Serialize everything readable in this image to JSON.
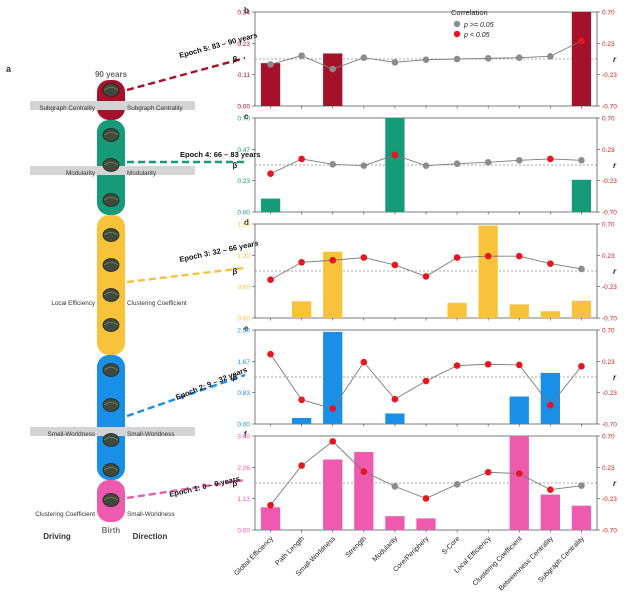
{
  "panel_a": {
    "letter": "a",
    "top_label": "90 years",
    "bottom_label": "Birth",
    "driving_label": "Driving",
    "direction_label": "Direction",
    "epochs": [
      {
        "label": "Epoch 5: 83 – 90 years",
        "color": "#a5102a",
        "left": "Subgraph Centrality",
        "right": "Subgraph Centrality"
      },
      {
        "label": "Epoch 4: 66 – 83 years",
        "color": "#169a77",
        "left": "Modularity",
        "right": "Modularity"
      },
      {
        "label": "Epoch 3: 32 – 66 years",
        "color": "#f8c33b",
        "left": "Local Efficiency",
        "right": "Clustering Coefficient"
      },
      {
        "label": "Epoch 2: 9 – 32 years",
        "color": "#1a8fe8",
        "left": "Small-Worldness",
        "right": "Small-Worldness"
      },
      {
        "label": "Epoch 1: 0 – 9 years",
        "color": "#ee5aae",
        "left": "Clustering Coefficient",
        "right": "Small-Worldness"
      }
    ]
  },
  "legend": {
    "title": "Correlation",
    "items": [
      {
        "label": "p >= 0.05",
        "color": "#8c8c8c"
      },
      {
        "label": "p < 0.05",
        "color": "#e8141e"
      }
    ]
  },
  "axis_labels": {
    "left": "β",
    "right": "r"
  },
  "chart_data": {
    "type": "bar+line",
    "categories": [
      "Global Efficiency",
      "Path Length",
      "Small-Worldness",
      "Strength",
      "Modularity",
      "Core/Periphery",
      "S-Core",
      "Local Efficiency",
      "Clustering Coefficient",
      "Betweenness Centrality",
      "Subgraph Centrality"
    ],
    "r_ticks": [
      "0.70",
      "0.23",
      "-0.23",
      "-0.70"
    ],
    "r_range": [
      -0.7,
      0.7
    ],
    "panels": [
      {
        "letter": "b",
        "color": "#a5102a",
        "beta_ticks": [
          "0.34",
          "0.23",
          "0.11",
          "0.00"
        ],
        "beta_max": 0.34,
        "beta": [
          0.155,
          0,
          0.19,
          0,
          0,
          0,
          0,
          0,
          0,
          0,
          0.34
        ],
        "r": [
          -0.08,
          0.05,
          -0.15,
          0.02,
          -0.05,
          -0.01,
          0,
          0.01,
          0.02,
          0.04,
          0.27
        ],
        "sig": [
          0,
          0,
          0,
          0,
          0,
          0,
          0,
          0,
          0,
          0,
          1
        ]
      },
      {
        "letter": "c",
        "color": "#169a77",
        "beta_ticks": [
          "0.70",
          "0.47",
          "0.23",
          "0.00"
        ],
        "beta_max": 0.7,
        "beta": [
          0.1,
          0,
          0,
          0,
          0.7,
          0,
          0,
          0,
          0,
          0,
          0.24
        ],
        "r": [
          -0.13,
          0.09,
          0.01,
          -0.01,
          0.15,
          -0.01,
          0.02,
          0.04,
          0.07,
          0.09,
          0.07
        ],
        "sig": [
          1,
          1,
          0,
          0,
          1,
          0,
          0,
          0,
          0,
          1,
          0
        ]
      },
      {
        "letter": "d",
        "color": "#f8c33b",
        "beta_ticks": [
          "1.80",
          "1.20",
          "0.60",
          "0.00"
        ],
        "beta_max": 1.8,
        "beta": [
          0,
          0.32,
          1.27,
          0,
          0,
          0,
          0.29,
          1.77,
          0.26,
          0.13,
          0.33
        ],
        "r": [
          -0.13,
          0.13,
          0.16,
          0.2,
          0.09,
          -0.08,
          0.2,
          0.22,
          0.22,
          0.11,
          0.03
        ],
        "sig": [
          1,
          1,
          1,
          1,
          1,
          1,
          1,
          1,
          1,
          1,
          0
        ]
      },
      {
        "letter": "e",
        "color": "#1a8fe8",
        "beta_ticks": [
          "2.50",
          "1.67",
          "0.83",
          "0.00"
        ],
        "beta_max": 2.5,
        "beta": [
          0,
          0.16,
          2.45,
          0,
          0.28,
          0,
          0,
          0,
          0.73,
          1.36,
          0
        ],
        "r": [
          0.34,
          -0.34,
          -0.47,
          0.22,
          -0.33,
          -0.06,
          0.17,
          0.19,
          0.18,
          -0.42,
          0.16
        ],
        "sig": [
          1,
          1,
          1,
          1,
          1,
          1,
          1,
          1,
          1,
          1,
          1
        ]
      },
      {
        "letter": "f",
        "color": "#ee5aae",
        "beta_ticks": [
          "3.40",
          "2.26",
          "1.13",
          "0.00"
        ],
        "beta_max": 3.4,
        "beta": [
          0.82,
          0,
          2.55,
          2.82,
          0.5,
          0.42,
          0,
          0,
          3.4,
          1.28,
          0.88
        ],
        "r": [
          -0.33,
          0.26,
          0.62,
          0.17,
          -0.05,
          -0.23,
          -0.02,
          0.16,
          0.14,
          -0.1,
          -0.04
        ],
        "sig": [
          1,
          1,
          1,
          1,
          0,
          1,
          0,
          1,
          1,
          1,
          0
        ]
      }
    ]
  }
}
